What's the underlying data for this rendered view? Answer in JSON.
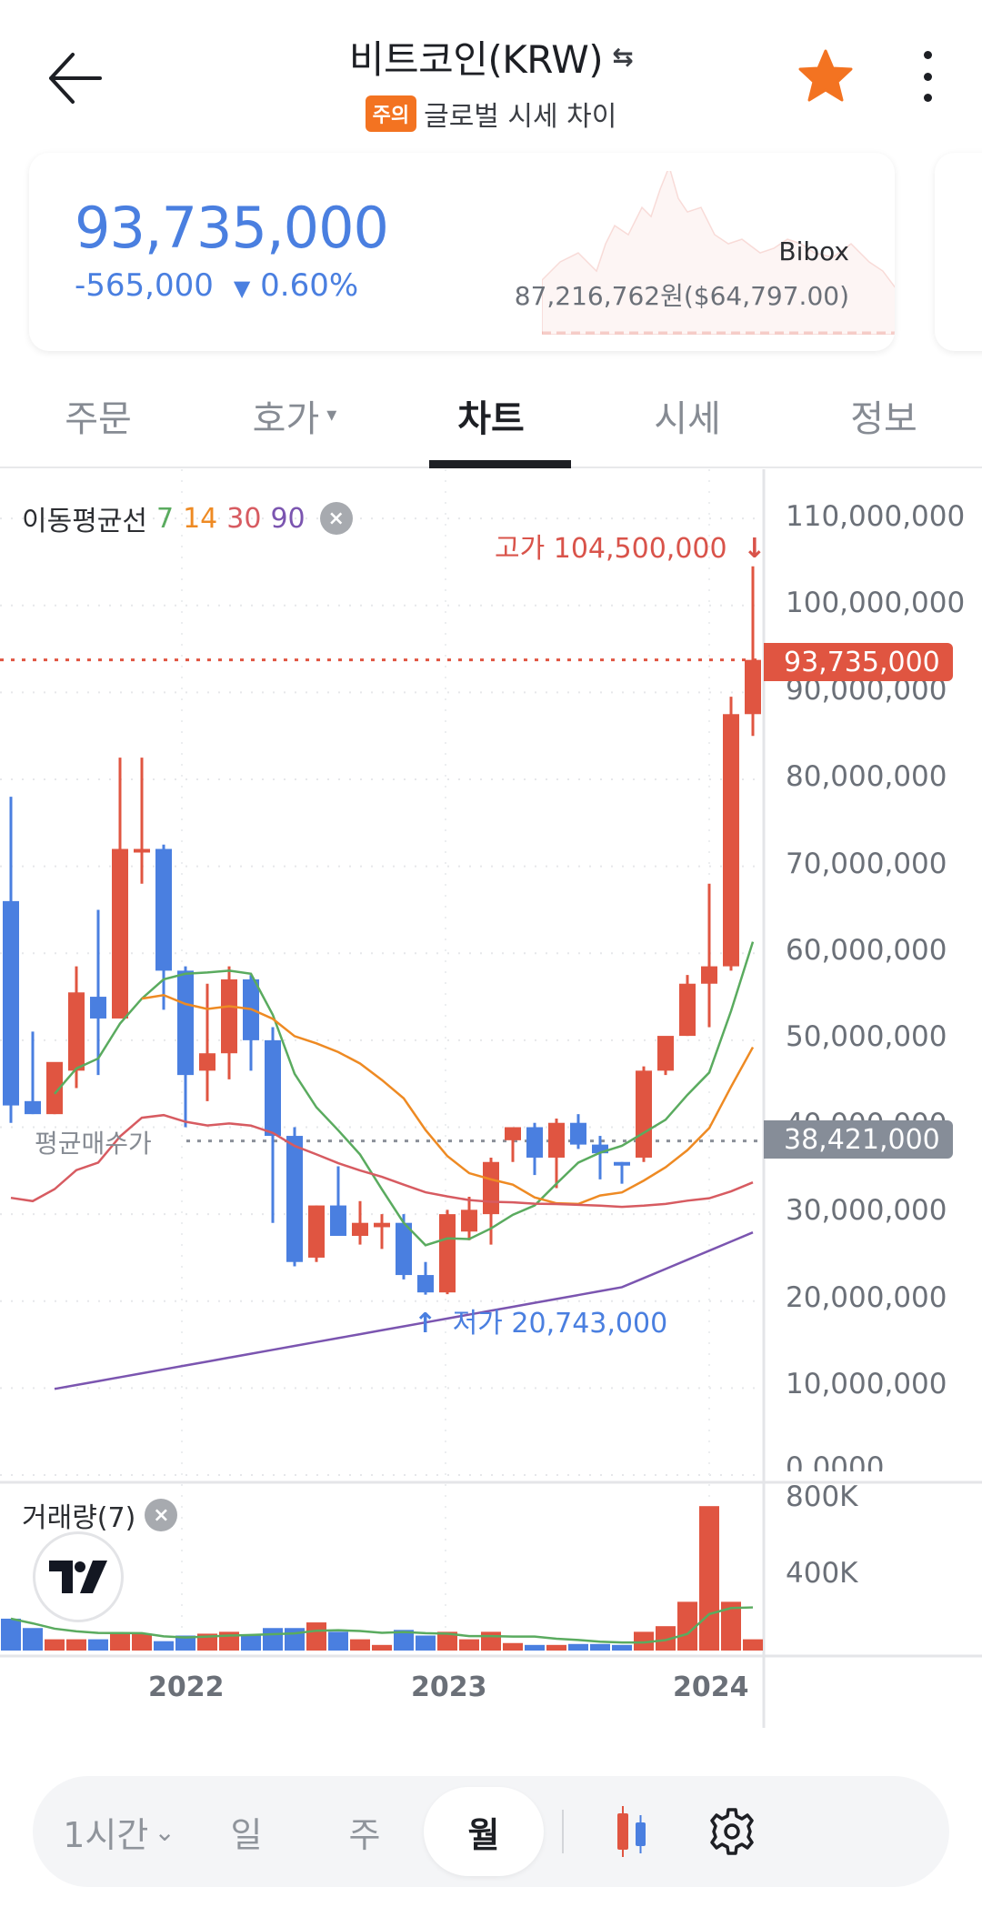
{
  "header": {
    "title": "비트코인(KRW)",
    "swap_icon": "⇆",
    "badge": "주의",
    "subtitle": "글로벌 시세 차이",
    "back_icon": "arrow-left-icon",
    "favorite_icon": "star-icon",
    "favorite_color": "#f37321",
    "more_icon": "kebab-menu-icon"
  },
  "price_card": {
    "current_price": "93,735,000",
    "change_amount": "-565,000",
    "change_direction": "▼",
    "change_percent": "0.60%",
    "color": "#4a7fe0",
    "exchange_name": "Bibox",
    "exchange_price": "87,216,762원($64,797.00)"
  },
  "tabs": [
    {
      "label": "주문",
      "active": false
    },
    {
      "label": "호가",
      "active": false,
      "caret": "▾"
    },
    {
      "label": "차트",
      "active": true
    },
    {
      "label": "시세",
      "active": false
    },
    {
      "label": "정보",
      "active": false
    }
  ],
  "chart": {
    "ma_legend": {
      "label": "이동평균선",
      "periods": [
        {
          "value": "7",
          "color": "#5aab5f"
        },
        {
          "value": "14",
          "color": "#ee8a23"
        },
        {
          "value": "30",
          "color": "#d75b61"
        },
        {
          "value": "90",
          "color": "#7b55b0"
        }
      ],
      "close_icon": "×"
    },
    "high_label": "고가 104,500,000",
    "high_arrow": "↓",
    "low_label": "저가 20,743,000",
    "low_arrow": "↑",
    "avg_buy_label": "평균매수가",
    "current_price_tag": "93,735,000",
    "current_price_tag_color": "#e05541",
    "avg_price_tag": "38,421,000",
    "avg_price_tag_color": "#868d98",
    "y_axis_labels": [
      "110,000,000",
      "100,000,000",
      "90,000,000",
      "80,000,000",
      "70,000,000",
      "60,000,000",
      "50,000,000",
      "40,000,000",
      "30,000,000",
      "20,000,000",
      "10,000,000",
      "0.0000"
    ],
    "volume_legend": {
      "label": "거래량(7)",
      "close_icon": "×"
    },
    "volume_axis_labels": [
      "800K",
      "400K"
    ],
    "x_axis_labels": [
      "2022",
      "2023",
      "2024"
    ],
    "up_color": "#e05541",
    "down_color": "#4a7fe0"
  },
  "chart_data": {
    "type": "candlestick",
    "title": "비트코인(KRW) 월봉",
    "interval": "월",
    "ylim": [
      0,
      110000000
    ],
    "x_ticks": [
      "2022",
      "2023",
      "2024"
    ],
    "annotations": {
      "high": 104500000,
      "low": 20743000,
      "current": 93735000,
      "avg_buy": 38421000
    },
    "candles": [
      {
        "open": 66000000,
        "high": 78000000,
        "low": 40500000,
        "close": 42500000,
        "dir": "down"
      },
      {
        "open": 43000000,
        "high": 51000000,
        "low": 41500000,
        "close": 41500000,
        "dir": "down"
      },
      {
        "open": 41500000,
        "high": 44000000,
        "low": 41500000,
        "close": 47500000,
        "dir": "up"
      },
      {
        "open": 46500000,
        "high": 58500000,
        "low": 44500000,
        "close": 55500000,
        "dir": "up"
      },
      {
        "open": 55000000,
        "high": 65000000,
        "low": 46000000,
        "close": 52500000,
        "dir": "down"
      },
      {
        "open": 52500000,
        "high": 82500000,
        "low": 52500000,
        "close": 72000000,
        "dir": "up"
      },
      {
        "open": 72000000,
        "high": 82500000,
        "low": 68000000,
        "close": 72000000,
        "dir": "up"
      },
      {
        "open": 72000000,
        "high": 72500000,
        "low": 53500000,
        "close": 58000000,
        "dir": "down"
      },
      {
        "open": 58000000,
        "high": 58500000,
        "low": 40000000,
        "close": 46000000,
        "dir": "down"
      },
      {
        "open": 46500000,
        "high": 56500000,
        "low": 43000000,
        "close": 48500000,
        "dir": "up"
      },
      {
        "open": 48500000,
        "high": 58500000,
        "low": 45500000,
        "close": 57000000,
        "dir": "up"
      },
      {
        "open": 57000000,
        "high": 57500000,
        "low": 46500000,
        "close": 50000000,
        "dir": "down"
      },
      {
        "open": 50000000,
        "high": 51500000,
        "low": 29000000,
        "close": 39000000,
        "dir": "down"
      },
      {
        "open": 39000000,
        "high": 40000000,
        "low": 24000000,
        "close": 24500000,
        "dir": "down"
      },
      {
        "open": 25000000,
        "high": 31000000,
        "low": 24500000,
        "close": 31000000,
        "dir": "up"
      },
      {
        "open": 31000000,
        "high": 35500000,
        "low": 28500000,
        "close": 27500000,
        "dir": "down"
      },
      {
        "open": 27500000,
        "high": 31500000,
        "low": 26500000,
        "close": 29000000,
        "dir": "up"
      },
      {
        "open": 28500000,
        "high": 30000000,
        "low": 26000000,
        "close": 29000000,
        "dir": "up"
      },
      {
        "open": 29000000,
        "high": 30000000,
        "low": 22500000,
        "close": 23000000,
        "dir": "down"
      },
      {
        "open": 23000000,
        "high": 24500000,
        "low": 20743000,
        "close": 21000000,
        "dir": "down"
      },
      {
        "open": 21000000,
        "high": 30500000,
        "low": 20800000,
        "close": 30000000,
        "dir": "up"
      },
      {
        "open": 28000000,
        "high": 32000000,
        "low": 27000000,
        "close": 30500000,
        "dir": "up"
      },
      {
        "open": 30000000,
        "high": 36500000,
        "low": 26500000,
        "close": 36000000,
        "dir": "up"
      },
      {
        "open": 38500000,
        "high": 40000000,
        "low": 36000000,
        "close": 40000000,
        "dir": "up"
      },
      {
        "open": 40000000,
        "high": 40500000,
        "low": 34500000,
        "close": 36500000,
        "dir": "down"
      },
      {
        "open": 36500000,
        "high": 41000000,
        "low": 33000000,
        "close": 40500000,
        "dir": "up"
      },
      {
        "open": 40500000,
        "high": 41500000,
        "low": 37500000,
        "close": 38000000,
        "dir": "down"
      },
      {
        "open": 37000000,
        "high": 39000000,
        "low": 34000000,
        "close": 38000000,
        "dir": "down"
      },
      {
        "open": 36000000,
        "high": 36000000,
        "low": 33500000,
        "close": 36000000,
        "dir": "down"
      },
      {
        "open": 36500000,
        "high": 47000000,
        "low": 36000000,
        "close": 46500000,
        "dir": "up"
      },
      {
        "open": 46500000,
        "high": 50000000,
        "low": 46000000,
        "close": 50500000,
        "dir": "up"
      },
      {
        "open": 50500000,
        "high": 57500000,
        "low": 50500000,
        "close": 56500000,
        "dir": "up"
      },
      {
        "open": 56500000,
        "high": 68000000,
        "low": 51500000,
        "close": 58500000,
        "dir": "up"
      },
      {
        "open": 58500000,
        "high": 89500000,
        "low": 58000000,
        "close": 87500000,
        "dir": "up"
      },
      {
        "open": 87500000,
        "high": 104500000,
        "low": 85000000,
        "close": 93735000,
        "dir": "up"
      }
    ],
    "moving_averages": [
      {
        "name": "MA7",
        "color": "#5aab5f"
      },
      {
        "name": "MA14",
        "color": "#ee8a23"
      },
      {
        "name": "MA30",
        "color": "#d75b61"
      },
      {
        "name": "MA90",
        "color": "#7b55b0"
      }
    ],
    "volume": {
      "ylim": [
        0,
        800000
      ],
      "ticks": [
        "400K",
        "800K"
      ],
      "values": [
        170000,
        120000,
        60000,
        60000,
        60000,
        90000,
        90000,
        50000,
        80000,
        90000,
        100000,
        80000,
        120000,
        120000,
        150000,
        100000,
        60000,
        30000,
        110000,
        80000,
        100000,
        60000,
        100000,
        40000,
        30000,
        30000,
        35000,
        35000,
        30000,
        100000,
        130000,
        260000,
        770000,
        260000,
        60000
      ],
      "up_down": [
        "down",
        "down",
        "up",
        "up",
        "down",
        "up",
        "up",
        "down",
        "down",
        "up",
        "up",
        "down",
        "down",
        "down",
        "up",
        "down",
        "up",
        "up",
        "down",
        "down",
        "up",
        "up",
        "up",
        "up",
        "down",
        "up",
        "down",
        "down",
        "down",
        "up",
        "up",
        "up",
        "up",
        "up",
        "up"
      ]
    }
  },
  "bottom_bar": {
    "periods": [
      {
        "label": "1시간",
        "caret": "⌄",
        "active": false
      },
      {
        "label": "일",
        "active": false
      },
      {
        "label": "주",
        "active": false
      },
      {
        "label": "월",
        "active": true
      }
    ],
    "chart_type_icon": "candlestick-icon",
    "settings_icon": "gear-icon"
  }
}
